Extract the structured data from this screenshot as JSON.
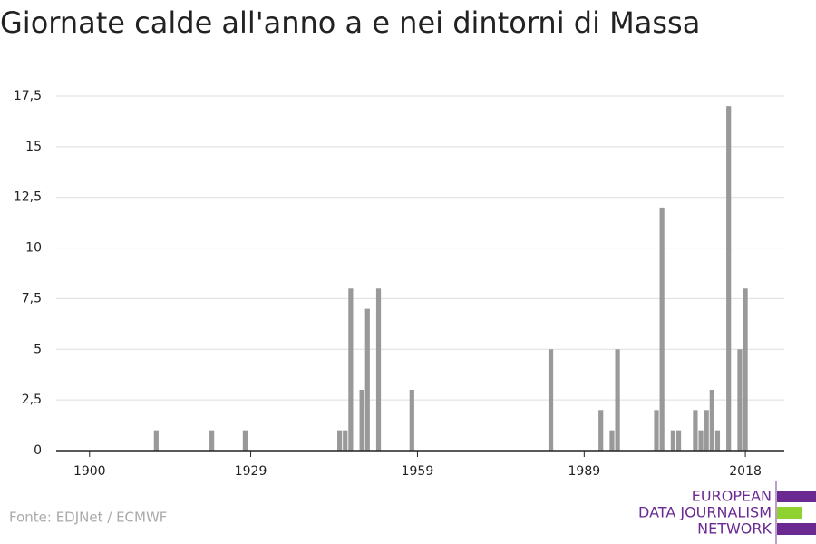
{
  "chart_data": {
    "type": "bar",
    "title": "Giornate calde all'anno a e nei dintorni di Massa",
    "x": [
      1912,
      1922,
      1928,
      1945,
      1946,
      1947,
      1949,
      1950,
      1952,
      1958,
      1983,
      1992,
      1994,
      1995,
      2002,
      2003,
      2005,
      2006,
      2009,
      2010,
      2011,
      2012,
      2013,
      2015,
      2017,
      2018
    ],
    "values": [
      1,
      1,
      1,
      1,
      1,
      8,
      3,
      7,
      8,
      3,
      5,
      2,
      1,
      5,
      2,
      12,
      1,
      1,
      2,
      1,
      2,
      3,
      1,
      17,
      5,
      8
    ],
    "color": "#999999",
    "xlim": [
      1894,
      2025
    ],
    "xticks": [
      1900,
      1929,
      1959,
      1989,
      2018
    ],
    "ylim": [
      0,
      17.5
    ],
    "yticks": [
      0,
      {
        "value": 2.5,
        "label": "2,5"
      },
      5,
      {
        "value": 7.5,
        "label": "7,5"
      },
      10,
      {
        "value": 12.5,
        "label": "12,5"
      },
      15,
      {
        "value": 17.5,
        "label": "17,5"
      }
    ],
    "grid": true,
    "source": "Fonte: EDJNet / ECMWF",
    "logo": [
      "EUROPEAN",
      "DATA JOURNALISM",
      "NETWORK"
    ]
  }
}
